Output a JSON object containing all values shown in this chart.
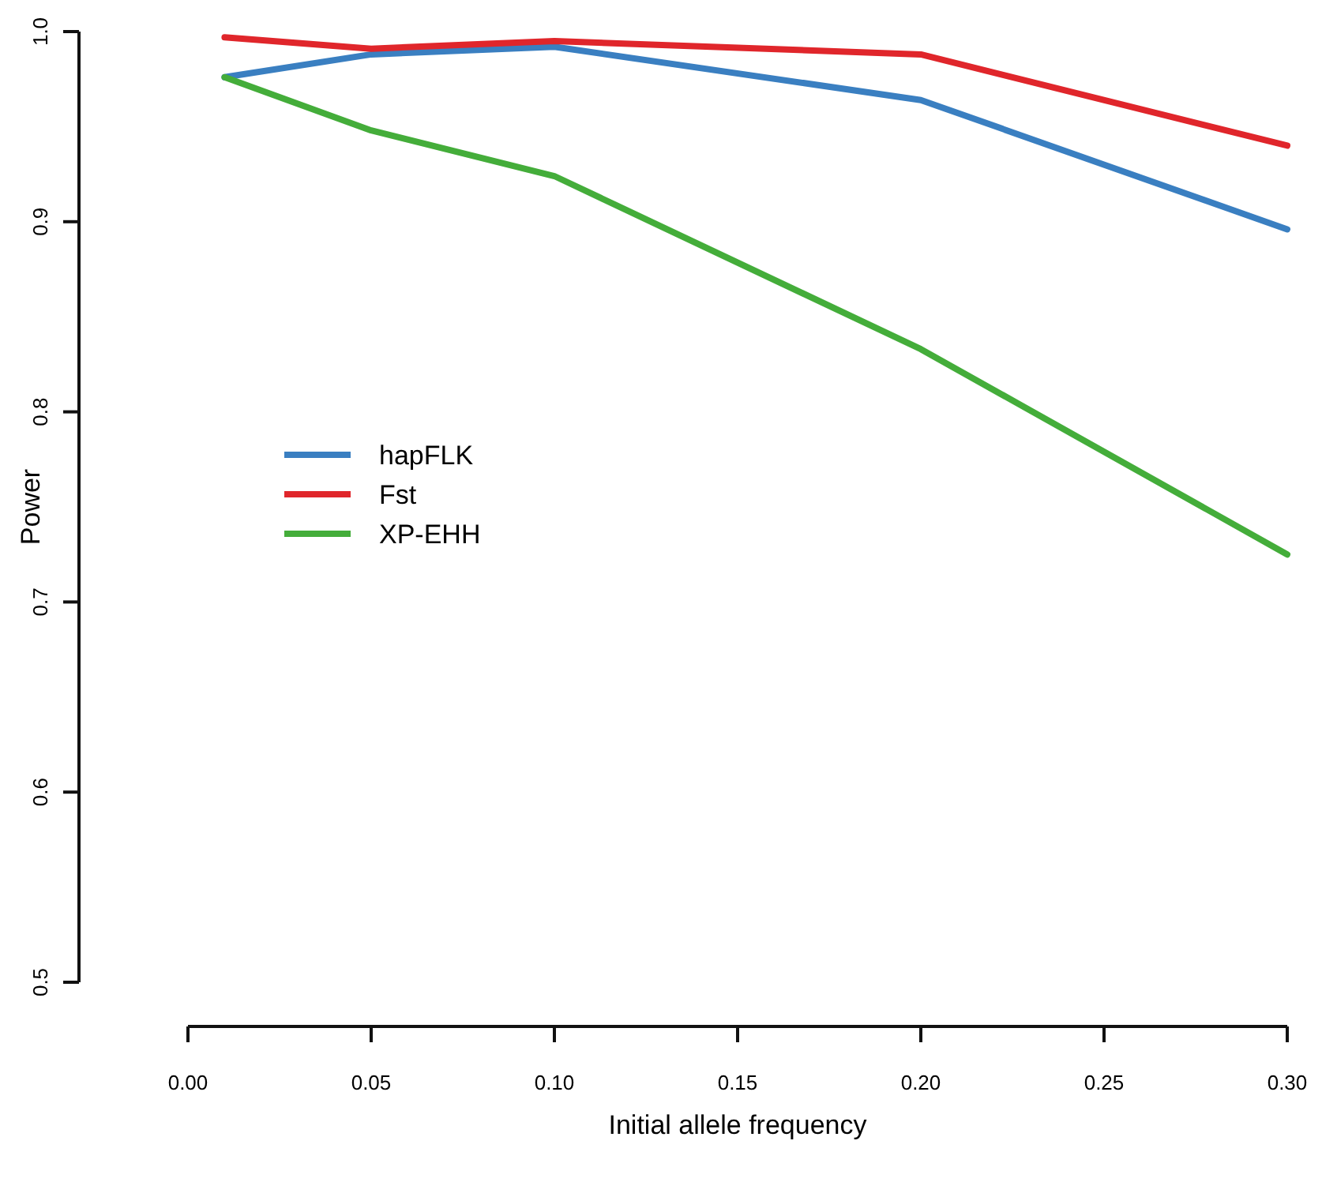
{
  "chart_data": {
    "type": "line",
    "xlabel": "Initial allele frequency",
    "ylabel": "Power",
    "x": [
      0.01,
      0.05,
      0.1,
      0.2,
      0.3
    ],
    "series": [
      {
        "name": "hapFLK",
        "color": "#3a7fc1",
        "values": [
          0.976,
          0.988,
          0.992,
          0.964,
          0.896
        ]
      },
      {
        "name": "Fst",
        "color": "#e0262b",
        "values": [
          0.997,
          0.991,
          0.995,
          0.988,
          0.94
        ]
      },
      {
        "name": "XP-EHH",
        "color": "#44ad3a",
        "values": [
          0.976,
          0.948,
          0.924,
          0.833,
          0.725
        ]
      }
    ],
    "xlim": [
      0,
      0.3
    ],
    "xticks": [
      {
        "value": 0,
        "label": "0.00"
      },
      {
        "value": 0.05,
        "label": "0.05"
      },
      {
        "value": 0.1,
        "label": "0.10"
      },
      {
        "value": 0.15,
        "label": "0.15"
      },
      {
        "value": 0.2,
        "label": "0.20"
      },
      {
        "value": 0.25,
        "label": "0.25"
      },
      {
        "value": 0.3,
        "label": "0.30"
      }
    ],
    "ylim": [
      0.5,
      1
    ],
    "yticks": [
      {
        "value": 0.5,
        "label": "0.5"
      },
      {
        "value": 0.6,
        "label": "0.6"
      },
      {
        "value": 0.7,
        "label": "0.7"
      },
      {
        "value": 0.8,
        "label": "0.8"
      },
      {
        "value": 0.9,
        "label": "0.9"
      },
      {
        "value": 1,
        "label": "1.0"
      }
    ],
    "legend": "left",
    "grid": false,
    "marker": "none",
    "line_style": "solid"
  }
}
